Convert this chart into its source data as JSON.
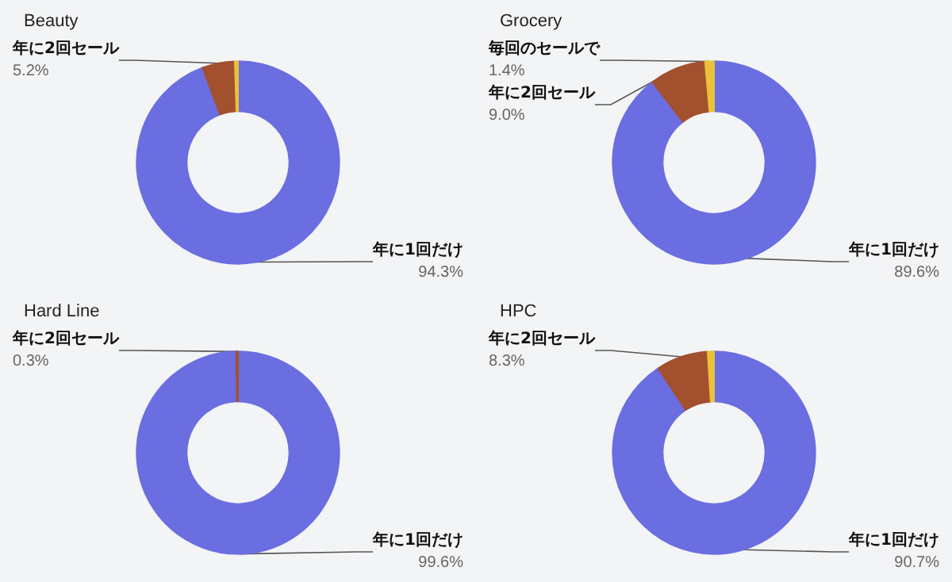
{
  "chart_data": [
    {
      "type": "donut",
      "title": "Beauty",
      "categories": [
        "年に1回だけ",
        "年に2回セール",
        null
      ],
      "values": [
        94.3,
        5.2,
        0.5
      ],
      "value_labels": [
        "94.3%",
        "5.2%",
        null
      ],
      "colors": [
        "#6b6ee0",
        "#a3502f",
        "#e9c23a"
      ],
      "legend": false
    },
    {
      "type": "donut",
      "title": "Grocery",
      "categories": [
        "年に1回だけ",
        "年に2回セール",
        "毎回のセールで"
      ],
      "values": [
        89.6,
        9.0,
        1.4
      ],
      "value_labels": [
        "89.6%",
        "9.0%",
        "1.4%"
      ],
      "colors": [
        "#6b6ee0",
        "#a3502f",
        "#e9c23a"
      ],
      "legend": false
    },
    {
      "type": "donut",
      "title": "Hard Line",
      "categories": [
        "年に1回だけ",
        "年に2回セール"
      ],
      "values": [
        99.6,
        0.3
      ],
      "value_labels": [
        "99.6%",
        "0.3%"
      ],
      "colors": [
        "#6b6ee0",
        "#a3502f"
      ],
      "legend": false
    },
    {
      "type": "donut",
      "title": "HPC",
      "categories": [
        "年に1回だけ",
        "年に2回セール",
        null
      ],
      "values": [
        90.7,
        8.3,
        1.0
      ],
      "value_labels": [
        "90.7%",
        "8.3%",
        null
      ],
      "colors": [
        "#6b6ee0",
        "#a3502f",
        "#e9c23a"
      ],
      "legend": false
    }
  ]
}
